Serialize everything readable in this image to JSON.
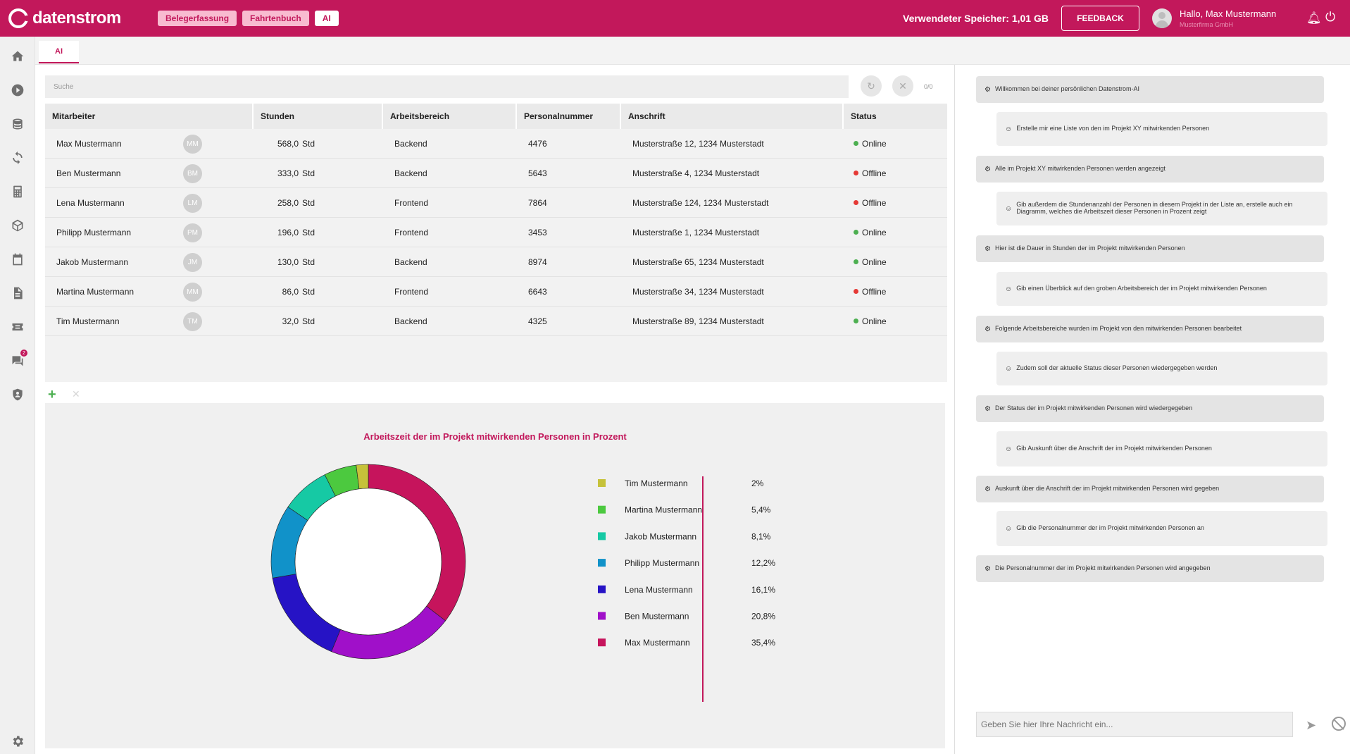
{
  "brand": {
    "name": "datenstrom",
    "accent": "#c2185b"
  },
  "modules": [
    {
      "label": "Belegerfassung",
      "active": false
    },
    {
      "label": "Fahrtenbuch",
      "active": false
    },
    {
      "label": "AI",
      "active": true
    }
  ],
  "header": {
    "storage_label": "Verwendeter Speicher:",
    "storage_value": "1,01 GB",
    "feedback_label": "FEEDBACK",
    "greeting": "Hallo, Max Mustermann",
    "company": "Musterfirma GmbH"
  },
  "work_tab": "AI",
  "search": {
    "placeholder": "Suche",
    "counter": "0/0"
  },
  "table": {
    "headers": [
      "Mitarbeiter",
      "Stunden",
      "Arbeitsbereich",
      "Personalnummer",
      "Anschrift",
      "Status"
    ],
    "rows": [
      {
        "name": "Max Mustermann",
        "initials": "MM",
        "hours": "568,0",
        "unit": "Std",
        "area": "Backend",
        "number": "4476",
        "address": "Musterstraße 12, 1234 Musterstadt",
        "status": "Online",
        "status_color": "#4caf50"
      },
      {
        "name": "Ben Mustermann",
        "initials": "BM",
        "hours": "333,0",
        "unit": "Std",
        "area": "Backend",
        "number": "5643",
        "address": "Musterstraße 4, 1234 Musterstadt",
        "status": "Offline",
        "status_color": "#e53935"
      },
      {
        "name": "Lena Mustermann",
        "initials": "LM",
        "hours": "258,0",
        "unit": "Std",
        "area": "Frontend",
        "number": "7864",
        "address": "Musterstraße 124, 1234 Musterstadt",
        "status": "Offline",
        "status_color": "#e53935"
      },
      {
        "name": "Philipp Mustermann",
        "initials": "PM",
        "hours": "196,0",
        "unit": "Std",
        "area": "Frontend",
        "number": "3453",
        "address": "Musterstraße 1, 1234 Musterstadt",
        "status": "Online",
        "status_color": "#4caf50"
      },
      {
        "name": "Jakob Mustermann",
        "initials": "JM",
        "hours": "130,0",
        "unit": "Std",
        "area": "Backend",
        "number": "8974",
        "address": "Musterstraße 65, 1234 Musterstadt",
        "status": "Online",
        "status_color": "#4caf50"
      },
      {
        "name": "Martina Mustermann",
        "initials": "MM",
        "hours": "86,0",
        "unit": "Std",
        "area": "Frontend",
        "number": "6643",
        "address": "Musterstraße 34, 1234 Musterstadt",
        "status": "Offline",
        "status_color": "#e53935"
      },
      {
        "name": "Tim Mustermann",
        "initials": "TM",
        "hours": "32,0",
        "unit": "Std",
        "area": "Backend",
        "number": "4325",
        "address": "Musterstraße 89, 1234 Musterstadt",
        "status": "Online",
        "status_color": "#4caf50"
      }
    ]
  },
  "chart_data": {
    "type": "pie",
    "title": "Arbeitszeit der im Projekt mitwirkenden Personen in Prozent",
    "donut": true,
    "legend": "right",
    "slices": [
      {
        "label": "Tim Mustermann",
        "value": 2,
        "display": "2%",
        "color": "#c6c23a"
      },
      {
        "label": "Martina Mustermann",
        "value": 5.4,
        "display": "5,4%",
        "color": "#4cc93f"
      },
      {
        "label": "Jakob Mustermann",
        "value": 8.1,
        "display": "8,1%",
        "color": "#16c9a4"
      },
      {
        "label": "Philipp Mustermann",
        "value": 12.2,
        "display": "12,2%",
        "color": "#1192c9"
      },
      {
        "label": "Lena Mustermann",
        "value": 16.1,
        "display": "16,1%",
        "color": "#2613c5"
      },
      {
        "label": "Ben Mustermann",
        "value": 20.8,
        "display": "20,8%",
        "color": "#a010c9"
      },
      {
        "label": "Max Mustermann",
        "value": 35.4,
        "display": "35,4%",
        "color": "#c6145c"
      }
    ]
  },
  "chat": {
    "messages": [
      {
        "role": "ai",
        "text": "Willkommen bei deiner persönlichen Datenstrom-AI"
      },
      {
        "role": "user",
        "text": "Erstelle mir eine Liste von den im Projekt XY mitwirkenden Personen"
      },
      {
        "role": "ai",
        "text": "Alle im Projekt XY mitwirkenden Personen werden angezeigt"
      },
      {
        "role": "user",
        "text": "Gib außerdem die Stundenanzahl der Personen in diesem Projekt in der Liste an, erstelle auch ein Diagramm, welches die Arbeitszeit dieser Personen in Prozent zeigt"
      },
      {
        "role": "ai",
        "text": "Hier ist die Dauer in Stunden der im Projekt mitwirkenden Personen"
      },
      {
        "role": "user",
        "text": "Gib einen Überblick auf den groben Arbeitsbereich der im Projekt mitwirkenden Personen"
      },
      {
        "role": "ai",
        "text": "Folgende Arbeitsbereiche wurden im Projekt von den mitwirkenden Personen bearbeitet"
      },
      {
        "role": "user",
        "text": "Zudem soll der aktuelle Status dieser Personen wiedergegeben werden"
      },
      {
        "role": "ai",
        "text": "Der Status der im Projekt mitwirkenden Personen wird wiedergegeben"
      },
      {
        "role": "user",
        "text": "Gib Auskunft über die Anschrift der im Projekt mitwirkenden Personen"
      },
      {
        "role": "ai",
        "text": "Auskunft über die Anschrift der im Projekt mitwirkenden Personen wird gegeben"
      },
      {
        "role": "user",
        "text": "Gib die Personalnummer der im Projekt mitwirkenden Personen an"
      },
      {
        "role": "ai",
        "text": "Die Personalnummer der im Projekt mitwirkenden Personen wird angegeben"
      }
    ],
    "input_placeholder": "Geben Sie hier Ihre Nachricht ein..."
  },
  "rail": {
    "unread_messages": "2"
  }
}
